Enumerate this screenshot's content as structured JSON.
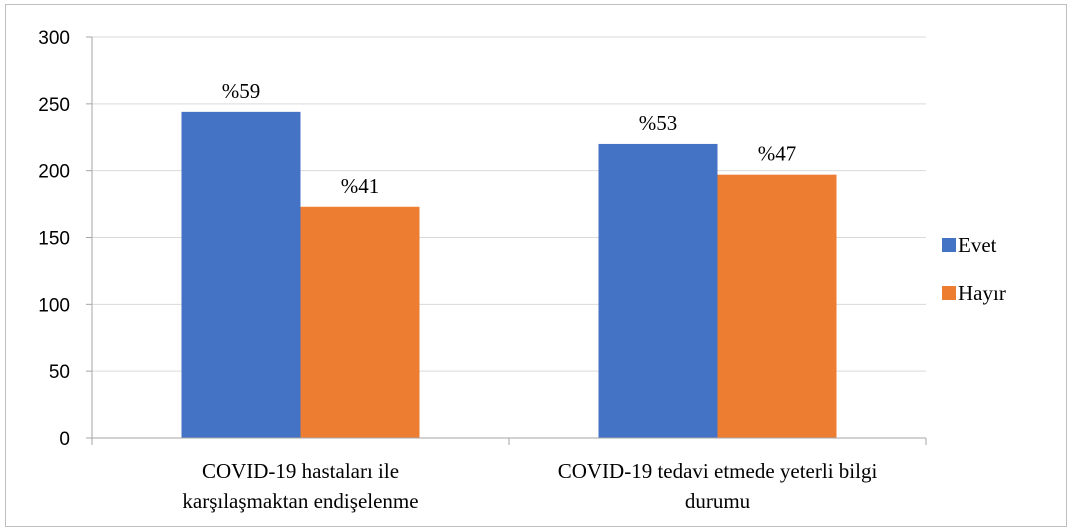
{
  "chart_data": {
    "type": "bar",
    "categories": [
      [
        "COVID-19 hastaları ile",
        "karşılaşmaktan endişelenme"
      ],
      [
        "COVID-19 tedavi etmede yeterli bilgi",
        "durumu"
      ]
    ],
    "series": [
      {
        "name": "Evet",
        "color": "#4472c4",
        "values": [
          244,
          220
        ],
        "labels": [
          "%59",
          "%53"
        ]
      },
      {
        "name": "Hayır",
        "color": "#ed7d31",
        "values": [
          173,
          197
        ],
        "labels": [
          "%41",
          "%47"
        ]
      }
    ],
    "ylim": [
      0,
      300
    ],
    "yticks": [
      0,
      50,
      100,
      150,
      200,
      250,
      300
    ],
    "grid": true,
    "legend_position": "right"
  }
}
